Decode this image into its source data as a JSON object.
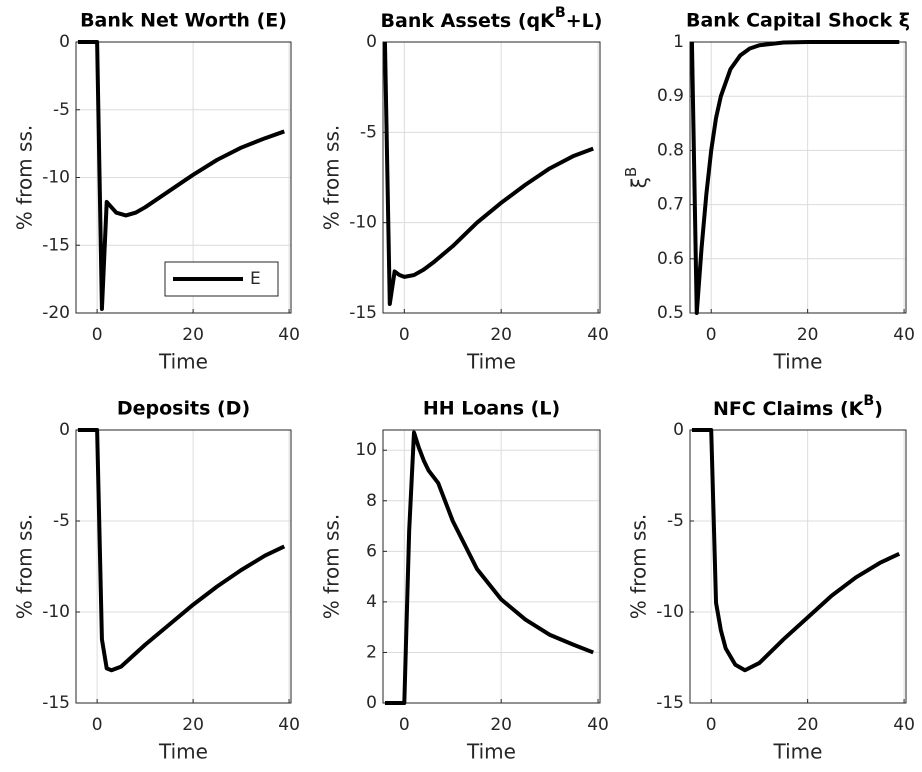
{
  "chart_data": [
    {
      "type": "line",
      "title": "Bank Net Worth (E)",
      "xlabel": "Time",
      "ylabel": "% from ss.",
      "x": [
        -4,
        0,
        1,
        2,
        3,
        4,
        6,
        8,
        10,
        15,
        20,
        25,
        30,
        35,
        39
      ],
      "series": [
        {
          "name": "E",
          "color": "#000000",
          "values": [
            0,
            0,
            -19.7,
            -11.8,
            -12.2,
            -12.6,
            -12.8,
            -12.6,
            -12.2,
            -11.0,
            -9.8,
            -8.7,
            -7.8,
            -7.1,
            -6.6
          ]
        }
      ],
      "xlim": [
        -4.4,
        40.4
      ],
      "xticks": [
        0,
        20,
        40
      ],
      "ylim": [
        -20,
        0
      ],
      "yticks": [
        -20,
        -15,
        -10,
        -5,
        0
      ],
      "grid": true,
      "legend": "southeast"
    },
    {
      "type": "line",
      "title": [
        "Bank Assets (qK",
        "B",
        "+L)"
      ],
      "xlabel": "Time",
      "ylabel": "% from ss.",
      "x": [
        -4,
        -3,
        -2,
        -1,
        0,
        2,
        4,
        6,
        10,
        15,
        20,
        25,
        30,
        35,
        39
      ],
      "series": [
        {
          "color": "#000000",
          "values": [
            0,
            -14.5,
            -12.7,
            -12.9,
            -13.0,
            -12.9,
            -12.6,
            -12.2,
            -11.3,
            -10.0,
            -8.9,
            -7.9,
            -7.0,
            -6.3,
            -5.9
          ]
        }
      ],
      "xlim": [
        -4.4,
        40.4
      ],
      "xticks": [
        0,
        20,
        40
      ],
      "ylim": [
        -15,
        0
      ],
      "yticks": [
        -15,
        -10,
        -5,
        0
      ],
      "grid": true
    },
    {
      "type": "line",
      "title": "Bank Capital Shock ξ",
      "xlabel": "Time",
      "ylabel": [
        "ξ",
        "B"
      ],
      "x": [
        -4,
        -3,
        -2,
        -1,
        0,
        1,
        2,
        4,
        6,
        8,
        10,
        15,
        20,
        39
      ],
      "series": [
        {
          "color": "#000000",
          "values": [
            1,
            0.5,
            0.62,
            0.72,
            0.8,
            0.86,
            0.9,
            0.95,
            0.975,
            0.988,
            0.994,
            0.999,
            1,
            1
          ]
        }
      ],
      "xlim": [
        -4.4,
        40.4
      ],
      "xticks": [
        0,
        20,
        40
      ],
      "ylim": [
        0.5,
        1
      ],
      "yticks": [
        0.5,
        0.6,
        0.7,
        0.8,
        0.9,
        1
      ],
      "grid": true
    },
    {
      "type": "line",
      "title": "Deposits (D)",
      "xlabel": "Time",
      "ylabel": "% from ss.",
      "x": [
        -4,
        0,
        1,
        2,
        3,
        5,
        10,
        15,
        20,
        25,
        30,
        35,
        39
      ],
      "series": [
        {
          "color": "#000000",
          "values": [
            0,
            0,
            -11.5,
            -13.1,
            -13.2,
            -13.0,
            -11.8,
            -10.7,
            -9.6,
            -8.6,
            -7.7,
            -6.9,
            -6.4
          ]
        }
      ],
      "xlim": [
        -4.4,
        40.4
      ],
      "xticks": [
        0,
        20,
        40
      ],
      "ylim": [
        -15,
        0
      ],
      "yticks": [
        -15,
        -10,
        -5,
        0
      ],
      "grid": true
    },
    {
      "type": "line",
      "title": "HH Loans (L)",
      "xlabel": "Time",
      "ylabel": "% from ss.",
      "x": [
        -4,
        0,
        1,
        2,
        3,
        4,
        5,
        7,
        10,
        15,
        20,
        25,
        30,
        35,
        39
      ],
      "series": [
        {
          "color": "#000000",
          "values": [
            0,
            0,
            6.8,
            10.7,
            10.1,
            9.6,
            9.2,
            8.7,
            7.2,
            5.3,
            4.1,
            3.3,
            2.7,
            2.3,
            2.0
          ]
        }
      ],
      "xlim": [
        -4.4,
        40.4
      ],
      "xticks": [
        0,
        20,
        40
      ],
      "ylim": [
        0,
        10.8
      ],
      "yticks": [
        0,
        2,
        4,
        6,
        8,
        10
      ],
      "grid": true
    },
    {
      "type": "line",
      "title": [
        "NFC Claims (K",
        "B",
        ")"
      ],
      "xlabel": "Time",
      "ylabel": "% from ss.",
      "x": [
        -4,
        0,
        1,
        2,
        3,
        5,
        7,
        10,
        15,
        20,
        25,
        30,
        35,
        39
      ],
      "series": [
        {
          "color": "#000000",
          "values": [
            0,
            0,
            -9.5,
            -11.0,
            -12.0,
            -12.9,
            -13.2,
            -12.8,
            -11.5,
            -10.3,
            -9.1,
            -8.1,
            -7.3,
            -6.8
          ]
        }
      ],
      "xlim": [
        -4.4,
        40.4
      ],
      "xticks": [
        0,
        20,
        40
      ],
      "ylim": [
        -15,
        0
      ],
      "yticks": [
        -15,
        -10,
        -5,
        0
      ],
      "grid": true
    }
  ]
}
